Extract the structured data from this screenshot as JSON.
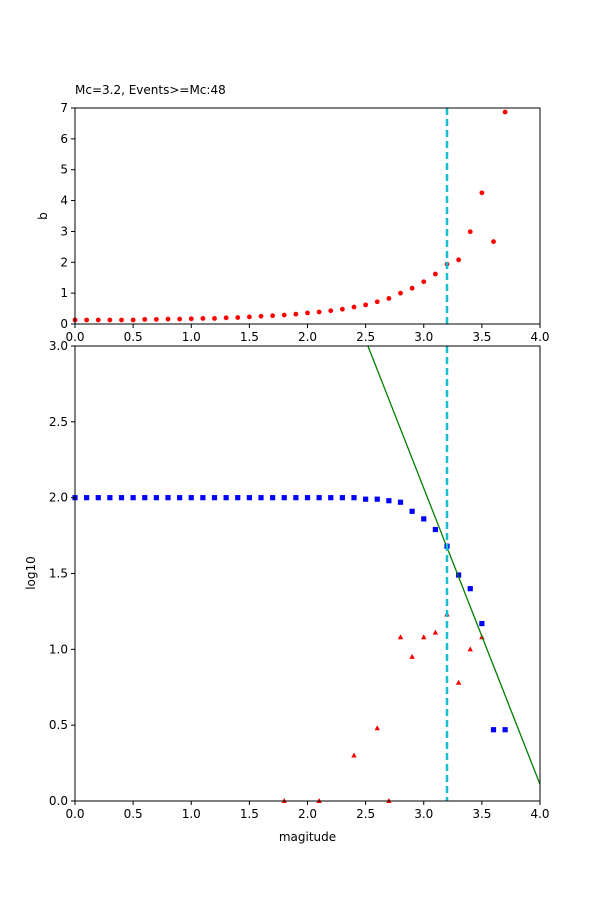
{
  "figure": {
    "title": "Mc=3.2, Events>=Mc:48"
  },
  "colors": {
    "cumulative": "#0000ff",
    "noncumulative": "#ff0000",
    "bvalue": "#ff0000",
    "fit_line": "#008000",
    "mc_line": "#17becf"
  },
  "chart_data": [
    {
      "id": "top",
      "type": "scatter",
      "title": "Mc=3.2, Events>=Mc:48",
      "xlabel": "",
      "ylabel": "b",
      "xlim": [
        0,
        4
      ],
      "ylim": [
        0,
        7
      ],
      "x_ticks": [
        "0.0",
        "0.5",
        "1.0",
        "1.5",
        "2.0",
        "2.5",
        "3.0",
        "3.5",
        "4.0"
      ],
      "y_ticks": [
        "0",
        "1",
        "2",
        "3",
        "4",
        "5",
        "6",
        "7"
      ],
      "grid": false,
      "mc_line_x": 3.2,
      "series": [
        {
          "marker": "circle",
          "points": [
            [
              0.0,
              0.13
            ],
            [
              0.1,
              0.13
            ],
            [
              0.2,
              0.13
            ],
            [
              0.3,
              0.13
            ],
            [
              0.4,
              0.13
            ],
            [
              0.5,
              0.13
            ],
            [
              0.6,
              0.15
            ],
            [
              0.7,
              0.15
            ],
            [
              0.8,
              0.16
            ],
            [
              0.9,
              0.16
            ],
            [
              1.0,
              0.17
            ],
            [
              1.1,
              0.18
            ],
            [
              1.2,
              0.18
            ],
            [
              1.3,
              0.2
            ],
            [
              1.4,
              0.21
            ],
            [
              1.5,
              0.23
            ],
            [
              1.6,
              0.25
            ],
            [
              1.7,
              0.27
            ],
            [
              1.8,
              0.29
            ],
            [
              1.9,
              0.32
            ],
            [
              2.0,
              0.36
            ],
            [
              2.1,
              0.39
            ],
            [
              2.2,
              0.43
            ],
            [
              2.3,
              0.48
            ],
            [
              2.4,
              0.55
            ],
            [
              2.5,
              0.62
            ],
            [
              2.6,
              0.72
            ],
            [
              2.7,
              0.83
            ],
            [
              2.8,
              1.0
            ],
            [
              2.9,
              1.16
            ],
            [
              3.0,
              1.37
            ],
            [
              3.1,
              1.62
            ],
            [
              3.2,
              1.94
            ],
            [
              3.3,
              2.08
            ],
            [
              3.4,
              2.99
            ],
            [
              3.5,
              4.25
            ],
            [
              3.6,
              2.67
            ],
            [
              3.7,
              6.87
            ]
          ]
        }
      ]
    },
    {
      "id": "bottom",
      "type": "scatter",
      "title": "",
      "xlabel": "magitude",
      "ylabel": "log10",
      "xlim": [
        0,
        4
      ],
      "ylim": [
        0,
        3
      ],
      "x_ticks": [
        "0.0",
        "0.5",
        "1.0",
        "1.5",
        "2.0",
        "2.5",
        "3.0",
        "3.5",
        "4.0"
      ],
      "y_ticks": [
        "0.0",
        "0.5",
        "1.0",
        "1.5",
        "2.0",
        "2.5",
        "3.0"
      ],
      "grid": false,
      "mc_line_x": 3.2,
      "fit_line": {
        "points": [
          [
            2.52,
            3.0
          ],
          [
            4.0,
            0.11
          ]
        ]
      },
      "series": [
        {
          "marker": "square",
          "points": [
            [
              0.0,
              2.0
            ],
            [
              0.1,
              2.0
            ],
            [
              0.2,
              2.0
            ],
            [
              0.3,
              2.0
            ],
            [
              0.4,
              2.0
            ],
            [
              0.5,
              2.0
            ],
            [
              0.6,
              2.0
            ],
            [
              0.7,
              2.0
            ],
            [
              0.8,
              2.0
            ],
            [
              0.9,
              2.0
            ],
            [
              1.0,
              2.0
            ],
            [
              1.1,
              2.0
            ],
            [
              1.2,
              2.0
            ],
            [
              1.3,
              2.0
            ],
            [
              1.4,
              2.0
            ],
            [
              1.5,
              2.0
            ],
            [
              1.6,
              2.0
            ],
            [
              1.7,
              2.0
            ],
            [
              1.8,
              2.0
            ],
            [
              1.9,
              2.0
            ],
            [
              2.0,
              2.0
            ],
            [
              2.1,
              2.0
            ],
            [
              2.2,
              2.0
            ],
            [
              2.3,
              2.0
            ],
            [
              2.4,
              2.0
            ],
            [
              2.5,
              1.99
            ],
            [
              2.6,
              1.99
            ],
            [
              2.7,
              1.98
            ],
            [
              2.8,
              1.97
            ],
            [
              2.9,
              1.91
            ],
            [
              3.0,
              1.86
            ],
            [
              3.1,
              1.79
            ],
            [
              3.2,
              1.68
            ],
            [
              3.3,
              1.49
            ],
            [
              3.4,
              1.4
            ],
            [
              3.5,
              1.17
            ],
            [
              3.6,
              0.47
            ],
            [
              3.7,
              0.47
            ]
          ]
        },
        {
          "marker": "triangle",
          "points": [
            [
              1.8,
              0.0
            ],
            [
              2.1,
              0.0
            ],
            [
              2.4,
              0.3
            ],
            [
              2.6,
              0.48
            ],
            [
              2.7,
              0.0
            ],
            [
              2.8,
              1.08
            ],
            [
              2.9,
              0.95
            ],
            [
              3.0,
              1.08
            ],
            [
              3.1,
              1.11
            ],
            [
              3.2,
              1.23
            ],
            [
              3.3,
              0.78
            ],
            [
              3.4,
              1.0
            ],
            [
              3.5,
              1.08
            ]
          ]
        }
      ]
    }
  ]
}
